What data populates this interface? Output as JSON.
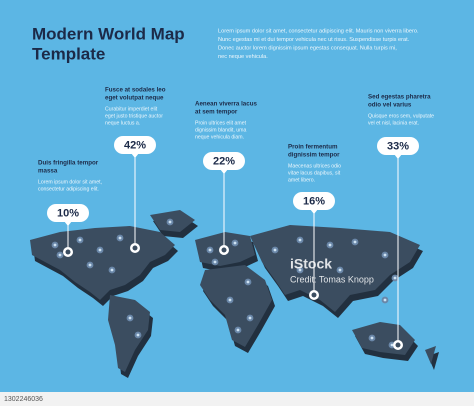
{
  "header": {
    "title": [
      "Modern World Map",
      "Template"
    ],
    "description": [
      "Lorem ipsum dolor sit amet, consectetur adipiscing elit. Mauris non viverra libero.",
      "Nunc egestas mi et dui tempor vehicula nec ut risus. Suspendisse turpis erat.",
      "Donec auctor lorem dignissim ipsum egestas consequat. Nulla turpis mi,",
      "nec neque vehicula."
    ]
  },
  "callouts": [
    {
      "heading": [
        "Duis fringilla tempor",
        "massa"
      ],
      "body": [
        "Lorem ipsum dolor sit amet,",
        "consectetur adipiscing elit."
      ],
      "value": "10%"
    },
    {
      "heading": [
        "Fusce at sodales leo",
        "eget volutpat neque"
      ],
      "body": [
        "Curabitur imperdiet elit",
        "eget justo tristique auctor",
        "neque luctus a."
      ],
      "value": "42%"
    },
    {
      "heading": [
        "Aenean viverra lacus",
        "at sem tempor"
      ],
      "body": [
        "Proin ultrices elit amet",
        "dignissim blandit, uma",
        "neque vehicula diam."
      ],
      "value": "22%"
    },
    {
      "heading": [
        "Proin fermentum",
        "dignissim tempor"
      ],
      "body": [
        "Maecenas ultrices odio",
        "vitae lacus dapibus, sit",
        "amet libero."
      ],
      "value": "16%"
    },
    {
      "heading": [
        "Sed egestas pharetra",
        "odio vel varius"
      ],
      "body": [
        "Quisque eros sem, vulputate",
        "vel et nisl, lacinia erat."
      ],
      "value": "33%"
    }
  ],
  "watermark": {
    "brand": "iStock",
    "credit": "Credit: Tomas Knopp"
  },
  "image_id": "1302246036"
}
